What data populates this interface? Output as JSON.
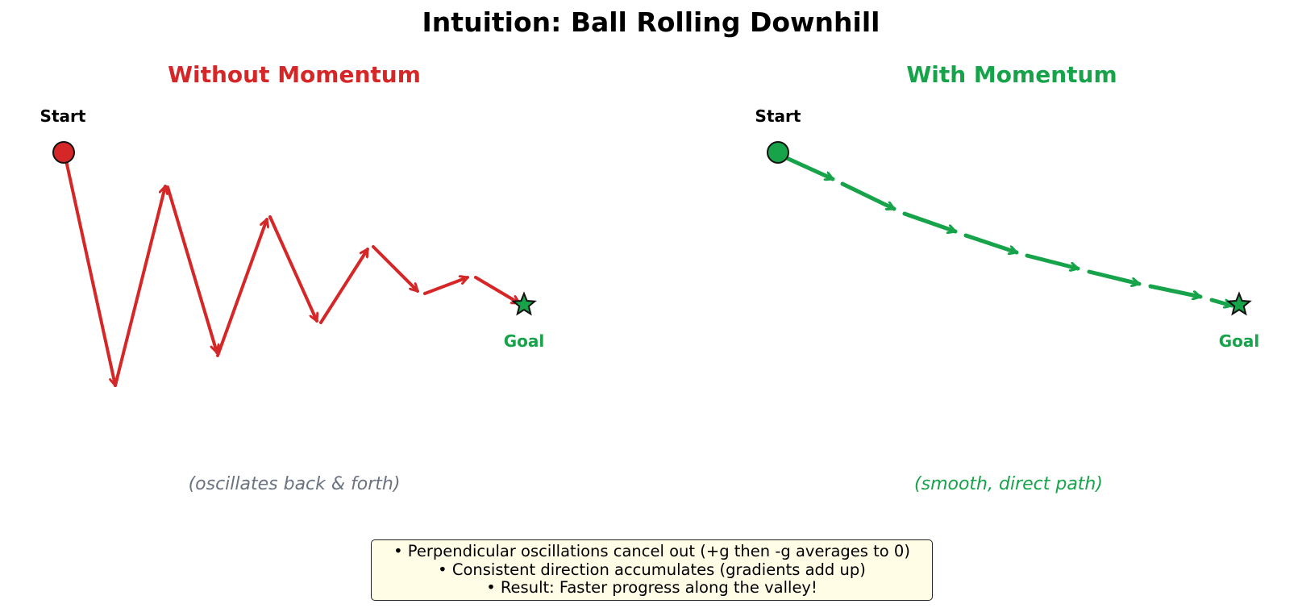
{
  "title": "Intuition: Ball Rolling Downhill",
  "colors": {
    "red": "#d62728",
    "green": "#16a34a",
    "caption_gray": "#6b7280",
    "note_bg": "#fffde6"
  },
  "panels": {
    "left": {
      "title": "Without Momentum",
      "start_label": "Start",
      "goal_label": "Goal",
      "caption": "(oscillates back & forth)",
      "path_style": "zigzag"
    },
    "right": {
      "title": "With Momentum",
      "start_label": "Start",
      "goal_label": "Goal",
      "caption": "(smooth, direct path)",
      "path_style": "smooth"
    }
  },
  "notes": [
    "• Perpendicular oscillations cancel out (+g then -g averages to 0)",
    "• Consistent direction accumulates (gradients add up)",
    "• Result: Faster progress along the valley!"
  ]
}
